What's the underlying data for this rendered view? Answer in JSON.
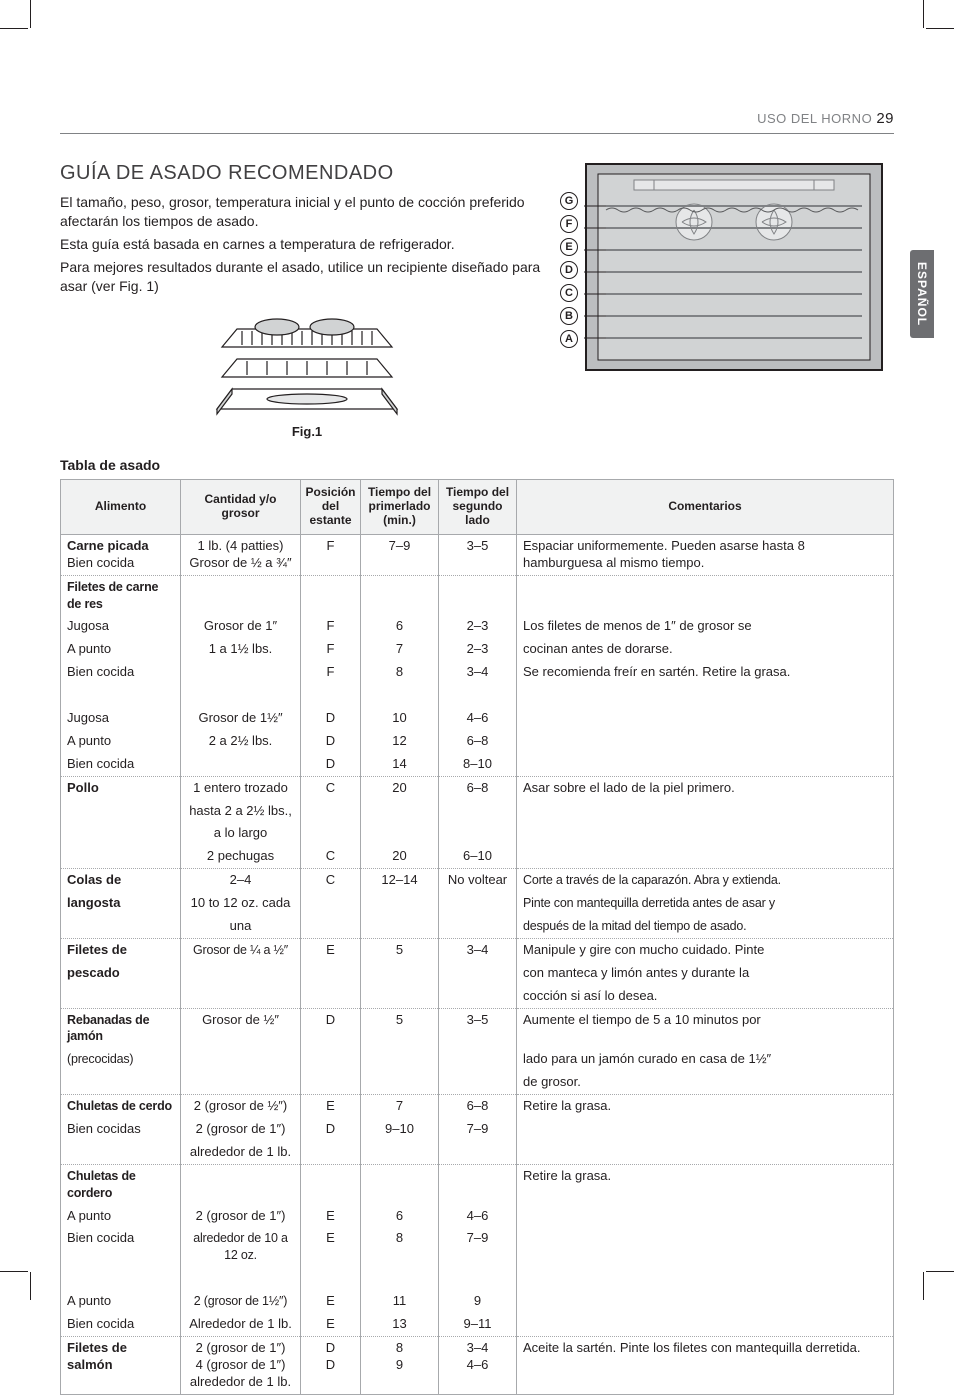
{
  "header": {
    "section": "USO DEL HORNO",
    "page": "29"
  },
  "side_tab": "ESPAÑOL",
  "title": "GUÍA DE ASADO RECOMENDADO",
  "intro": {
    "p1": "El tamaño, peso, grosor, temperatura inicial y el punto de cocción preferido afectarán los tiempos de asado.",
    "p2": "Esta guía está basada en carnes a temperatura de refrigerador.",
    "p3": "Para mejores resultados durante el asado, utilice un recipiente diseñado para asar (ver Fig. 1)"
  },
  "fig1_label": "Fig.1",
  "rack_labels": [
    "G",
    "F",
    "E",
    "D",
    "C",
    "B",
    "A"
  ],
  "table_caption": "Tabla de asado",
  "table": {
    "headers": {
      "food": "Alimento",
      "qty": "Cantidad y/o grosor",
      "pos": "Posición del estante",
      "t1": "Tiempo del primerlado (min.)",
      "t2": "Tiempo del segundo lado",
      "comments": "Comentarios"
    },
    "rows": [
      {
        "sep": true,
        "food_b": "Carne picada",
        "food_l2": "Bien cocida",
        "qty_l1": "1 lb. (4 patties)",
        "qty_l2": "Grosor de ½ a ¾″",
        "pos": "F",
        "t1": "7–9",
        "t2": "3–5",
        "comments": "Espaciar uniformemente. Pueden asarse hasta 8 hamburguesa al mismo tiempo."
      },
      {
        "sep": true,
        "food_b_cond": "Filetes de carne de res"
      },
      {
        "food_l1": "Jugosa",
        "qty_l1": "Grosor de 1″",
        "pos": "F",
        "t1": "6",
        "t2": "2–3",
        "comments": "Los filetes de menos de 1″ de grosor se"
      },
      {
        "food_l1": "A punto",
        "qty_l1": "1 a 1½ lbs.",
        "pos": "F",
        "t1": "7",
        "t2": "2–3",
        "comments": "cocinan antes de dorarse."
      },
      {
        "food_l1": "Bien cocida",
        "pos": "F",
        "t1": "8",
        "t2": "3–4",
        "comments": "Se recomienda freír en sartén. Retire la grasa."
      },
      {
        "spacer": true
      },
      {
        "food_l1": "Jugosa",
        "qty_l1": "Grosor de 1½″",
        "pos": "D",
        "t1": "10",
        "t2": "4–6"
      },
      {
        "food_l1": "A punto",
        "qty_l1": "2 a 2½ lbs.",
        "pos": "D",
        "t1": "12",
        "t2": "6–8"
      },
      {
        "food_l1": "Bien cocida",
        "pos": "D",
        "t1": "14",
        "t2": "8–10"
      },
      {
        "sep": true,
        "food_b": "Pollo",
        "qty_l1": "1 entero trozado",
        "pos": "C",
        "t1": "20",
        "t2": "6–8",
        "comments": "Asar sobre el lado de la piel primero."
      },
      {
        "qty_l1": "hasta 2 a 2½ lbs.,"
      },
      {
        "qty_l1": "a lo largo"
      },
      {
        "qty_l1": "2 pechugas",
        "pos": "C",
        "t1": "20",
        "t2": "6–10"
      },
      {
        "sep": true,
        "food_b": "Colas de",
        "qty_l1": "2–4",
        "pos": "C",
        "t1": "12–14",
        "t2": "No voltear",
        "comments_cond": "Corte a través de la caparazón. Abra y extienda."
      },
      {
        "food_b": "langosta",
        "qty_l1": "10 to 12 oz. cada",
        "comments_cond": "Pinte con mantequilla derretida antes de asar y"
      },
      {
        "qty_l1": "una",
        "comments_cond": "después de la mitad del tiempo de asado."
      },
      {
        "sep": true,
        "food_b": "Filetes de",
        "qty_l1_cond": "Grosor de ¼ a ½″",
        "pos": "E",
        "t1": "5",
        "t2": "3–4",
        "comments": "Manipule y gire con mucho cuidado. Pinte"
      },
      {
        "food_b": "pescado",
        "comments": "con manteca y limón antes y durante la"
      },
      {
        "comments": "cocción si así lo desea."
      },
      {
        "sep": true,
        "food_b_cond": "Rebanadas de jamón",
        "qty_l1": "Grosor de ½″",
        "pos": "D",
        "t1": "5",
        "t2": "3–5",
        "comments": "Aumente el tiempo de 5 a 10 minutos por"
      },
      {
        "food_l1_cond": "(precocidas)",
        "comments": "lado para un jamón curado en casa de 1½″"
      },
      {
        "comments": "de grosor."
      },
      {
        "sep": true,
        "food_b_cond": "Chuletas de cerdo",
        "qty_l1": "2 (grosor de ½″)",
        "pos": "E",
        "t1": "7",
        "t2": "6–8",
        "comments": "Retire la grasa."
      },
      {
        "food_l1": "Bien cocidas",
        "qty_l1": "2 (grosor de 1″)",
        "pos": "D",
        "t1": "9–10",
        "t2": "7–9"
      },
      {
        "qty_l1": "alrededor de 1 lb."
      },
      {
        "sep": true,
        "food_b_cond": "Chuletas de cordero",
        "comments": "Retire la grasa."
      },
      {
        "food_l1": "A punto",
        "qty_l1": "2 (grosor de 1″)",
        "pos": "E",
        "t1": "6",
        "t2": "4–6"
      },
      {
        "food_l1": "Bien cocida",
        "qty_l1_cond": "alrededor de 10 a 12 oz.",
        "pos": "E",
        "t1": "8",
        "t2": "7–9"
      },
      {
        "spacer": true
      },
      {
        "food_l1": "A punto",
        "qty_l1_cond": "2 (grosor de 1½″)",
        "pos": "E",
        "t1": "11",
        "t2": "9"
      },
      {
        "food_l1": "Bien cocida",
        "qty_l1": "Alrededor de 1 lb.",
        "pos": "E",
        "t1": "13",
        "t2": "9–11"
      },
      {
        "sep": true,
        "last": true,
        "food_b": "Filetes de",
        "food_b2": "salmón",
        "qty_l1": "2 (grosor de 1″)",
        "qty_l2": "4 (grosor de 1″)",
        "qty_l3": "alrededor de 1 lb.",
        "pos": "D",
        "pos2": "D",
        "t1": "8",
        "t1b": "9",
        "t2": "3–4",
        "t2b": "4–6",
        "comments": "Aceite la sartén. Pinte los filetes con mantequilla derretida."
      }
    ]
  },
  "colors": {
    "rule": "#808285",
    "border": "#a7a9ac",
    "thbg": "#f1f2f2",
    "text": "#231f20",
    "tab": "#6d6e71"
  }
}
